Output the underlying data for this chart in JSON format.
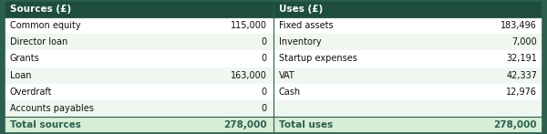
{
  "header_bg": "#1e4d3b",
  "header_text_color": "#ffffff",
  "row_bg_even": "#ffffff",
  "row_bg_odd": "#f0f7f0",
  "total_bg": "#d6edd6",
  "total_text_color": "#2d5f4f",
  "border_color": "#2d5f4f",
  "body_text_color": "#111111",
  "header_sources": "Sources (£)",
  "header_uses": "Uses (£)",
  "rows": [
    [
      "Common equity",
      "115,000",
      "Fixed assets",
      "183,496"
    ],
    [
      "Director loan",
      "0",
      "Inventory",
      "7,000"
    ],
    [
      "Grants",
      "0",
      "Startup expenses",
      "32,191"
    ],
    [
      "Loan",
      "163,000",
      "VAT",
      "42,337"
    ],
    [
      "Overdraft",
      "0",
      "Cash",
      "12,976"
    ],
    [
      "Accounts payables",
      "0",
      "",
      ""
    ]
  ],
  "total_row": [
    "Total sources",
    "278,000",
    "Total uses",
    "278,000"
  ],
  "figsize": [
    6.0,
    1.47
  ],
  "dpi": 100
}
